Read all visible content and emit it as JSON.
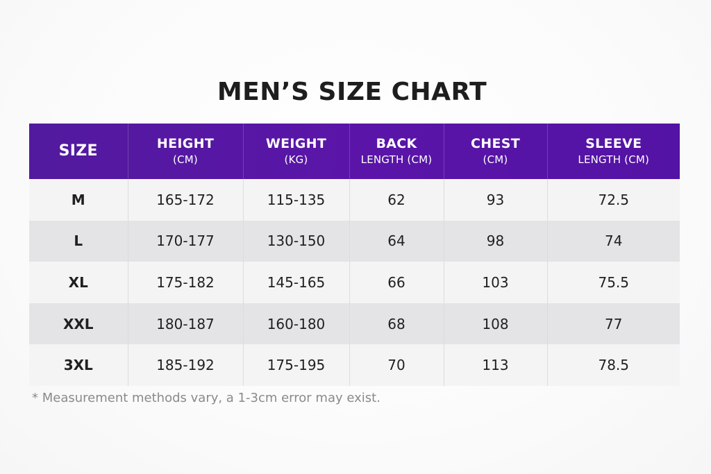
{
  "title": "MEN’S SIZE CHART",
  "header": {
    "size": "SIZE",
    "height": {
      "main": "HEIGHT",
      "sub": "(CM)"
    },
    "weight": {
      "main": "WEIGHT",
      "sub": "(KG)"
    },
    "back": {
      "main": "BACK",
      "sub": "LENGTH (CM)"
    },
    "chest": {
      "main": "CHEST",
      "sub": "(CM)"
    },
    "sleeve": {
      "main": "SLEEVE",
      "sub": "LENGTH (CM)"
    }
  },
  "rows": [
    {
      "size": "M",
      "height": "165-172",
      "weight": "115-135",
      "back": "62",
      "chest": "93",
      "sleeve": "72.5"
    },
    {
      "size": "L",
      "height": "170-177",
      "weight": "130-150",
      "back": "64",
      "chest": "98",
      "sleeve": "74"
    },
    {
      "size": "XL",
      "height": "175-182",
      "weight": "145-165",
      "back": "66",
      "chest": "103",
      "sleeve": "75.5"
    },
    {
      "size": "XXL",
      "height": "180-187",
      "weight": "160-180",
      "back": "68",
      "chest": "108",
      "sleeve": "77"
    },
    {
      "size": "3XL",
      "height": "185-192",
      "weight": "175-195",
      "back": "70",
      "chest": "113",
      "sleeve": "78.5"
    }
  ],
  "note": "* Measurement methods vary, a 1-3cm error may exist.",
  "colors": {
    "header_bg": "#5a15a8",
    "row_light": "#f4f4f5",
    "row_dark": "#e4e4e6",
    "note_text": "#8a8a8a"
  }
}
